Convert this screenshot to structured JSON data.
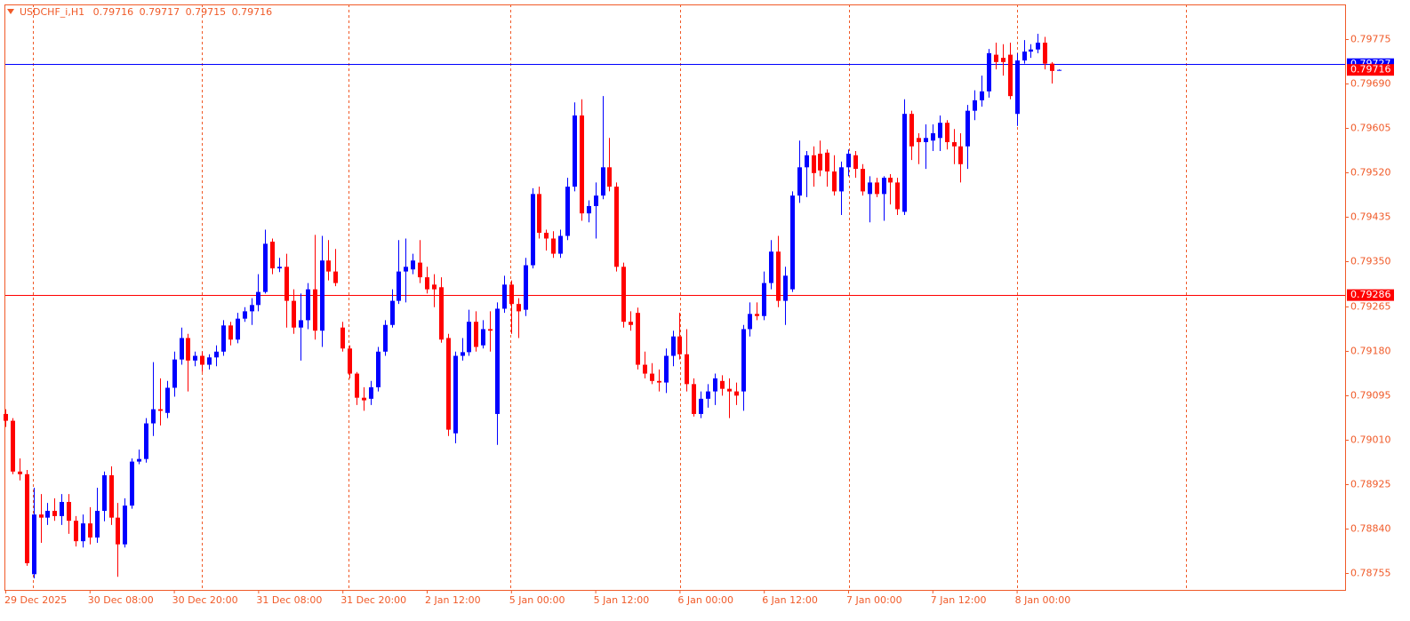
{
  "chart_data": {
    "type": "candlestick",
    "title": "USDCHF_i,H1",
    "bull_color": "#0000ff",
    "bear_color": "#ff0000",
    "frame_color": "#f05a28",
    "grid": false,
    "ylim": [
      0.78723,
      0.79841
    ],
    "yticks": [
      0.79775,
      {
        "value": 0.7969,
        "label": "0.79690"
      },
      0.79605,
      {
        "value": 0.7952,
        "label": "0.79520"
      },
      0.79435,
      {
        "value": 0.7935,
        "label": "0.79350"
      },
      0.79265,
      {
        "value": 0.7918,
        "label": "0.79180"
      },
      0.79095,
      {
        "value": 0.7901,
        "label": "0.79010"
      },
      0.78925,
      {
        "value": 0.7884,
        "label": "0.78840"
      },
      0.78755
    ],
    "levels": [
      {
        "value": 0.79727,
        "color": "#0000ff"
      },
      {
        "value": 0.79286,
        "color": "#ff0000"
      }
    ],
    "categories": [
      "29 Dec 2025",
      null,
      null,
      null,
      null,
      null,
      null,
      null,
      null,
      null,
      null,
      null,
      "30 Dec 08:00",
      null,
      null,
      null,
      null,
      null,
      null,
      null,
      null,
      null,
      null,
      null,
      "30 Dec 20:00",
      null,
      null,
      null,
      null,
      null,
      null,
      null,
      null,
      null,
      null,
      null,
      "31 Dec 08:00",
      null,
      null,
      null,
      null,
      null,
      null,
      null,
      null,
      null,
      null,
      null,
      "31 Dec 20:00",
      null,
      null,
      null,
      null,
      null,
      null,
      null,
      null,
      null,
      null,
      null,
      "2 Jan 12:00",
      null,
      null,
      null,
      null,
      null,
      null,
      null,
      null,
      null,
      null,
      null,
      "5 Jan 00:00",
      null,
      null,
      null,
      null,
      null,
      null,
      null,
      null,
      null,
      null,
      null,
      "5 Jan 12:00",
      null,
      null,
      null,
      null,
      null,
      null,
      null,
      null,
      null,
      null,
      null,
      "6 Jan 00:00",
      null,
      null,
      null,
      null,
      null,
      null,
      null,
      null,
      null,
      null,
      null,
      "6 Jan 12:00",
      null,
      null,
      null,
      null,
      null,
      null,
      null,
      null,
      null,
      null,
      null,
      "7 Jan 00:00",
      null,
      null,
      null,
      null,
      null,
      null,
      null,
      null,
      null,
      null,
      null,
      "7 Jan 12:00",
      null,
      null,
      null,
      null,
      null,
      null,
      null,
      null,
      null,
      null,
      null,
      "8 Jan 00:00",
      null,
      null,
      null,
      null,
      null,
      null
    ],
    "open": [
      0.79059,
      0.79046,
      0.78949,
      0.78944,
      0.78753,
      0.78867,
      0.78861,
      0.78874,
      0.78864,
      0.78891,
      0.78855,
      0.78816,
      0.7885,
      0.78823,
      0.78874,
      0.78942,
      0.78861,
      0.7881,
      0.78884,
      0.78968,
      0.78973,
      0.79041,
      0.79068,
      0.79061,
      0.79109,
      0.79163,
      0.79204,
      0.79161,
      0.7917,
      0.79153,
      0.79167,
      0.79178,
      0.79228,
      0.79201,
      0.79241,
      0.79255,
      0.79267,
      0.79292,
      0.79388,
      0.79337,
      0.7934,
      0.79275,
      0.79224,
      0.79238,
      0.79297,
      0.79218,
      0.79352,
      0.79331,
      0.79224,
      0.79184,
      0.79136,
      0.7909,
      0.79088,
      0.7911,
      0.79178,
      0.79229,
      0.79275,
      0.79331,
      0.79335,
      0.79348,
      0.7932,
      0.79306,
      0.79301,
      0.79204,
      0.79022,
      0.7917,
      0.79177,
      0.79235,
      0.7919,
      0.79221,
      0.79059,
      0.7926,
      0.79306,
      0.79269,
      0.79258,
      0.79343,
      0.79479,
      0.79405,
      0.79394,
      0.79365,
      0.79399,
      0.79493,
      0.79629,
      0.79442,
      0.79456,
      0.79476,
      0.7953,
      0.79493,
      0.7934,
      0.79235,
      0.79252,
      0.79153,
      0.79136,
      0.79122,
      0.79119,
      0.7917,
      0.79207,
      0.79173,
      0.79116,
      0.79059,
      0.79088,
      0.79102,
      0.79122,
      0.79107,
      0.79102,
      0.79102,
      0.79221,
      0.7925,
      0.79246,
      0.79309,
      0.79369,
      0.79275,
      0.79297,
      0.79476,
      0.7953,
      0.79553,
      0.79556,
      0.79558,
      0.79522,
      0.79484,
      0.7953,
      0.79553,
      0.79527,
      0.79479,
      0.79501,
      0.79479,
      0.7951,
      0.79501,
      0.79445,
      0.79632,
      0.79586,
      0.79578,
      0.79581,
      0.79586,
      0.79615,
      0.79578,
      0.7957,
      0.7957,
      0.79638,
      0.79658,
      0.79675,
      0.79745,
      0.79739,
      0.79745,
      0.79632,
      0.79734,
      0.79751,
      0.79755,
      0.79768,
      0.79728,
      0.79716
    ],
    "high": [
      0.79068,
      0.79051,
      0.78974,
      0.78952,
      0.78918,
      0.78906,
      0.78889,
      0.78898,
      0.78906,
      0.78906,
      0.78864,
      0.78867,
      0.78881,
      0.78918,
      0.78949,
      0.78959,
      0.78889,
      0.78898,
      0.78974,
      0.78991,
      0.79051,
      0.79158,
      0.79127,
      0.79122,
      0.79178,
      0.79224,
      0.79212,
      0.79178,
      0.79178,
      0.79173,
      0.7919,
      0.79238,
      0.79235,
      0.79252,
      0.79263,
      0.7928,
      0.79326,
      0.79411,
      0.79394,
      0.79357,
      0.79365,
      0.79297,
      0.79289,
      0.79309,
      0.79401,
      0.79399,
      0.79391,
      0.79374,
      0.79235,
      0.7919,
      0.79139,
      0.7911,
      0.79122,
      0.79187,
      0.79238,
      0.79297,
      0.79391,
      0.79394,
      0.79365,
      0.79391,
      0.7934,
      0.79326,
      0.7932,
      0.79212,
      0.79178,
      0.79204,
      0.79258,
      0.79255,
      0.79238,
      0.79255,
      0.79272,
      0.79323,
      0.79314,
      0.7928,
      0.79357,
      0.7949,
      0.79493,
      0.79411,
      0.79408,
      0.79411,
      0.7951,
      0.79654,
      0.7966,
      0.79467,
      0.79501,
      0.79666,
      0.79586,
      0.79501,
      0.79348,
      0.79255,
      0.79262,
      0.79178,
      0.79156,
      0.79144,
      0.79184,
      0.79218,
      0.79252,
      0.79221,
      0.79127,
      0.79102,
      0.79116,
      0.79136,
      0.79133,
      0.79127,
      0.79119,
      0.79229,
      0.79272,
      0.79272,
      0.79331,
      0.79391,
      0.79399,
      0.7934,
      0.79484,
      0.79581,
      0.79561,
      0.7957,
      0.79581,
      0.79564,
      0.79553,
      0.79541,
      0.79564,
      0.79561,
      0.79536,
      0.79513,
      0.7951,
      0.79513,
      0.79517,
      0.7951,
      0.7966,
      0.79638,
      0.79595,
      0.79612,
      0.79612,
      0.79629,
      0.7962,
      0.79603,
      0.79595,
      0.79649,
      0.79677,
      0.79705,
      0.79756,
      0.79768,
      0.79765,
      0.79768,
      0.79748,
      0.79773,
      0.79765,
      0.79785,
      0.79779,
      0.79731,
      0.79717
    ],
    "low": [
      0.79034,
      0.78944,
      0.78932,
      0.78769,
      0.78745,
      0.78813,
      0.78847,
      0.78855,
      0.78847,
      0.7883,
      0.78806,
      0.78804,
      0.7881,
      0.78813,
      0.78854,
      0.78847,
      0.78748,
      0.78804,
      0.78878,
      0.78963,
      0.78966,
      0.79017,
      0.79037,
      0.79051,
      0.79092,
      0.79153,
      0.79102,
      0.7915,
      0.79139,
      0.79144,
      0.7915,
      0.7917,
      0.7919,
      0.79194,
      0.79235,
      0.79229,
      0.79255,
      0.79289,
      0.79326,
      0.7933,
      0.79224,
      0.79212,
      0.79161,
      0.79221,
      0.79201,
      0.79187,
      0.79314,
      0.79303,
      0.79178,
      0.79127,
      0.79076,
      0.79065,
      0.79076,
      0.79102,
      0.7917,
      0.79224,
      0.79269,
      0.79272,
      0.79326,
      0.79309,
      0.79289,
      0.79263,
      0.79195,
      0.79017,
      0.79003,
      0.79161,
      0.7917,
      0.79178,
      0.79184,
      0.79178,
      0.79,
      0.79252,
      0.79212,
      0.79204,
      0.79246,
      0.79337,
      0.79394,
      0.79371,
      0.79357,
      0.79357,
      0.79391,
      0.79484,
      0.79428,
      0.79425,
      0.79394,
      0.79469,
      0.79484,
      0.79331,
      0.79224,
      0.79218,
      0.79144,
      0.79127,
      0.79116,
      0.79102,
      0.79099,
      0.7915,
      0.79163,
      0.79102,
      0.79054,
      0.79051,
      0.79071,
      0.79076,
      0.79094,
      0.79051,
      0.79076,
      0.79065,
      0.79207,
      0.79238,
      0.79238,
      0.79297,
      0.79263,
      0.79229,
      0.79292,
      0.79462,
      0.79473,
      0.79493,
      0.79513,
      0.79493,
      0.79476,
      0.79439,
      0.79513,
      0.7951,
      0.79476,
      0.79425,
      0.79473,
      0.79428,
      0.79459,
      0.79439,
      0.79439,
      0.79544,
      0.79536,
      0.79527,
      0.79561,
      0.79561,
      0.79564,
      0.79536,
      0.79501,
      0.79527,
      0.7962,
      0.79646,
      0.79663,
      0.79717,
      0.79705,
      0.7966,
      0.79609,
      0.79728,
      0.79739,
      0.79748,
      0.79717,
      0.7969,
      0.79715
    ],
    "close": [
      0.79046,
      0.78949,
      0.78944,
      0.78774,
      0.78867,
      0.78861,
      0.78874,
      0.78864,
      0.78891,
      0.78855,
      0.78816,
      0.7885,
      0.78823,
      0.78874,
      0.78942,
      0.78861,
      0.7881,
      0.78884,
      0.78968,
      0.78973,
      0.79041,
      0.79068,
      0.79065,
      0.79109,
      0.79163,
      0.79204,
      0.79161,
      0.7917,
      0.79153,
      0.79167,
      0.79178,
      0.79228,
      0.79201,
      0.79241,
      0.79255,
      0.79267,
      0.79292,
      0.79384,
      0.79337,
      0.7934,
      0.79275,
      0.79224,
      0.79238,
      0.79297,
      0.79218,
      0.79352,
      0.79331,
      0.79309,
      0.79184,
      0.79136,
      0.7909,
      0.79085,
      0.7911,
      0.79178,
      0.79229,
      0.79275,
      0.79331,
      0.7934,
      0.79352,
      0.7932,
      0.79297,
      0.79297,
      0.79201,
      0.79029,
      0.7917,
      0.79177,
      0.79235,
      0.79187,
      0.79221,
      0.79218,
      0.7926,
      0.79306,
      0.79269,
      0.79255,
      0.79343,
      0.79479,
      0.79405,
      0.79394,
      0.79365,
      0.79399,
      0.79493,
      0.79629,
      0.79442,
      0.79456,
      0.79476,
      0.7953,
      0.79493,
      0.7934,
      0.79235,
      0.79229,
      0.79153,
      0.79136,
      0.79122,
      0.79119,
      0.7917,
      0.79207,
      0.79173,
      0.79116,
      0.79059,
      0.79088,
      0.79102,
      0.79127,
      0.79107,
      0.79102,
      0.79094,
      0.79221,
      0.7925,
      0.79246,
      0.79309,
      0.79369,
      0.79275,
      0.79323,
      0.79476,
      0.7953,
      0.79553,
      0.79519,
      0.79524,
      0.79522,
      0.79484,
      0.7953,
      0.79556,
      0.79527,
      0.79484,
      0.79501,
      0.79479,
      0.7951,
      0.79501,
      0.7945,
      0.79632,
      0.7957,
      0.79578,
      0.79586,
      0.79595,
      0.79615,
      0.79578,
      0.7957,
      0.79536,
      0.79638,
      0.79658,
      0.79675,
      0.79748,
      0.79731,
      0.79731,
      0.79666,
      0.79734,
      0.79751,
      0.79755,
      0.79768,
      0.79728,
      0.79714,
      0.79716
    ]
  }
}
